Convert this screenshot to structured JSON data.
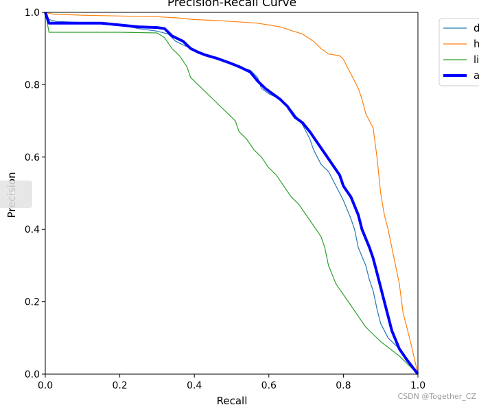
{
  "watermark": "CSDN @Together_CZ",
  "chart_data": {
    "type": "line",
    "title": "Precision-Recall Curve",
    "xlabel": "Recall",
    "ylabel": "Precision",
    "xlim": [
      0,
      1
    ],
    "ylim": [
      0,
      1
    ],
    "xticks": [
      "0.0",
      "0.2",
      "0.4",
      "0.6",
      "0.8",
      "1.0"
    ],
    "yticks": [
      "0.0",
      "0.2",
      "0.4",
      "0.6",
      "0.8",
      "1.0"
    ],
    "grid": false,
    "legend_position": "outside-top-right",
    "series": [
      {
        "name": "d",
        "color": "#1f77b4",
        "width": 1.2,
        "points": [
          [
            0.0,
            1.0
          ],
          [
            0.01,
            0.98
          ],
          [
            0.03,
            0.975
          ],
          [
            0.1,
            0.972
          ],
          [
            0.16,
            0.97
          ],
          [
            0.2,
            0.965
          ],
          [
            0.25,
            0.955
          ],
          [
            0.3,
            0.948
          ],
          [
            0.33,
            0.94
          ],
          [
            0.35,
            0.92
          ],
          [
            0.37,
            0.91
          ],
          [
            0.39,
            0.9
          ],
          [
            0.41,
            0.89
          ],
          [
            0.43,
            0.88
          ],
          [
            0.46,
            0.875
          ],
          [
            0.49,
            0.86
          ],
          [
            0.52,
            0.85
          ],
          [
            0.55,
            0.84
          ],
          [
            0.57,
            0.82
          ],
          [
            0.58,
            0.79
          ],
          [
            0.6,
            0.775
          ],
          [
            0.63,
            0.76
          ],
          [
            0.66,
            0.73
          ],
          [
            0.69,
            0.69
          ],
          [
            0.71,
            0.65
          ],
          [
            0.72,
            0.62
          ],
          [
            0.74,
            0.58
          ],
          [
            0.76,
            0.56
          ],
          [
            0.77,
            0.54
          ],
          [
            0.79,
            0.5
          ],
          [
            0.8,
            0.48
          ],
          [
            0.82,
            0.43
          ],
          [
            0.83,
            0.4
          ],
          [
            0.84,
            0.35
          ],
          [
            0.86,
            0.3
          ],
          [
            0.87,
            0.26
          ],
          [
            0.88,
            0.23
          ],
          [
            0.89,
            0.18
          ],
          [
            0.9,
            0.14
          ],
          [
            0.92,
            0.1
          ],
          [
            0.95,
            0.07
          ],
          [
            1.0,
            0.0
          ]
        ]
      },
      {
        "name": "h",
        "color": "#ff7f0e",
        "width": 1.2,
        "points": [
          [
            0.0,
            1.0
          ],
          [
            0.02,
            0.995
          ],
          [
            0.1,
            0.992
          ],
          [
            0.2,
            0.99
          ],
          [
            0.3,
            0.988
          ],
          [
            0.35,
            0.985
          ],
          [
            0.4,
            0.98
          ],
          [
            0.45,
            0.978
          ],
          [
            0.5,
            0.975
          ],
          [
            0.57,
            0.97
          ],
          [
            0.6,
            0.965
          ],
          [
            0.63,
            0.96
          ],
          [
            0.66,
            0.95
          ],
          [
            0.69,
            0.94
          ],
          [
            0.72,
            0.92
          ],
          [
            0.74,
            0.9
          ],
          [
            0.76,
            0.885
          ],
          [
            0.79,
            0.88
          ],
          [
            0.8,
            0.87
          ],
          [
            0.81,
            0.85
          ],
          [
            0.82,
            0.83
          ],
          [
            0.83,
            0.81
          ],
          [
            0.84,
            0.79
          ],
          [
            0.85,
            0.76
          ],
          [
            0.86,
            0.72
          ],
          [
            0.88,
            0.68
          ],
          [
            0.89,
            0.6
          ],
          [
            0.9,
            0.5
          ],
          [
            0.91,
            0.44
          ],
          [
            0.92,
            0.4
          ],
          [
            0.93,
            0.35
          ],
          [
            0.94,
            0.3
          ],
          [
            0.95,
            0.25
          ],
          [
            0.96,
            0.17
          ],
          [
            0.97,
            0.13
          ],
          [
            0.98,
            0.09
          ],
          [
            1.0,
            0.0
          ]
        ]
      },
      {
        "name": "li",
        "color": "#2ca02c",
        "width": 1.2,
        "points": [
          [
            0.0,
            1.0
          ],
          [
            0.01,
            0.945
          ],
          [
            0.05,
            0.945
          ],
          [
            0.1,
            0.945
          ],
          [
            0.2,
            0.945
          ],
          [
            0.3,
            0.943
          ],
          [
            0.32,
            0.93
          ],
          [
            0.34,
            0.9
          ],
          [
            0.36,
            0.88
          ],
          [
            0.38,
            0.85
          ],
          [
            0.39,
            0.82
          ],
          [
            0.41,
            0.8
          ],
          [
            0.43,
            0.78
          ],
          [
            0.45,
            0.76
          ],
          [
            0.47,
            0.74
          ],
          [
            0.49,
            0.72
          ],
          [
            0.51,
            0.7
          ],
          [
            0.52,
            0.67
          ],
          [
            0.54,
            0.65
          ],
          [
            0.56,
            0.62
          ],
          [
            0.58,
            0.6
          ],
          [
            0.59,
            0.585
          ],
          [
            0.6,
            0.57
          ],
          [
            0.62,
            0.55
          ],
          [
            0.64,
            0.52
          ],
          [
            0.66,
            0.49
          ],
          [
            0.68,
            0.47
          ],
          [
            0.7,
            0.44
          ],
          [
            0.72,
            0.41
          ],
          [
            0.74,
            0.38
          ],
          [
            0.75,
            0.35
          ],
          [
            0.76,
            0.3
          ],
          [
            0.78,
            0.25
          ],
          [
            0.8,
            0.22
          ],
          [
            0.82,
            0.19
          ],
          [
            0.84,
            0.16
          ],
          [
            0.86,
            0.13
          ],
          [
            0.88,
            0.11
          ],
          [
            0.9,
            0.09
          ],
          [
            0.95,
            0.05
          ],
          [
            1.0,
            0.0
          ]
        ]
      },
      {
        "name": "a",
        "color": "#0000ff",
        "width": 4,
        "points": [
          [
            0.0,
            1.0
          ],
          [
            0.01,
            0.97
          ],
          [
            0.05,
            0.97
          ],
          [
            0.15,
            0.97
          ],
          [
            0.2,
            0.965
          ],
          [
            0.25,
            0.96
          ],
          [
            0.3,
            0.958
          ],
          [
            0.32,
            0.955
          ],
          [
            0.34,
            0.935
          ],
          [
            0.37,
            0.92
          ],
          [
            0.39,
            0.9
          ],
          [
            0.41,
            0.89
          ],
          [
            0.43,
            0.882
          ],
          [
            0.46,
            0.873
          ],
          [
            0.49,
            0.862
          ],
          [
            0.52,
            0.85
          ],
          [
            0.55,
            0.835
          ],
          [
            0.57,
            0.81
          ],
          [
            0.59,
            0.79
          ],
          [
            0.61,
            0.775
          ],
          [
            0.63,
            0.76
          ],
          [
            0.65,
            0.74
          ],
          [
            0.67,
            0.71
          ],
          [
            0.69,
            0.695
          ],
          [
            0.71,
            0.67
          ],
          [
            0.73,
            0.64
          ],
          [
            0.75,
            0.61
          ],
          [
            0.77,
            0.58
          ],
          [
            0.79,
            0.55
          ],
          [
            0.8,
            0.52
          ],
          [
            0.82,
            0.49
          ],
          [
            0.84,
            0.44
          ],
          [
            0.85,
            0.4
          ],
          [
            0.87,
            0.35
          ],
          [
            0.88,
            0.32
          ],
          [
            0.89,
            0.28
          ],
          [
            0.9,
            0.24
          ],
          [
            0.91,
            0.2
          ],
          [
            0.92,
            0.16
          ],
          [
            0.93,
            0.12
          ],
          [
            0.95,
            0.07
          ],
          [
            0.97,
            0.04
          ],
          [
            1.0,
            0.0
          ]
        ]
      }
    ]
  }
}
